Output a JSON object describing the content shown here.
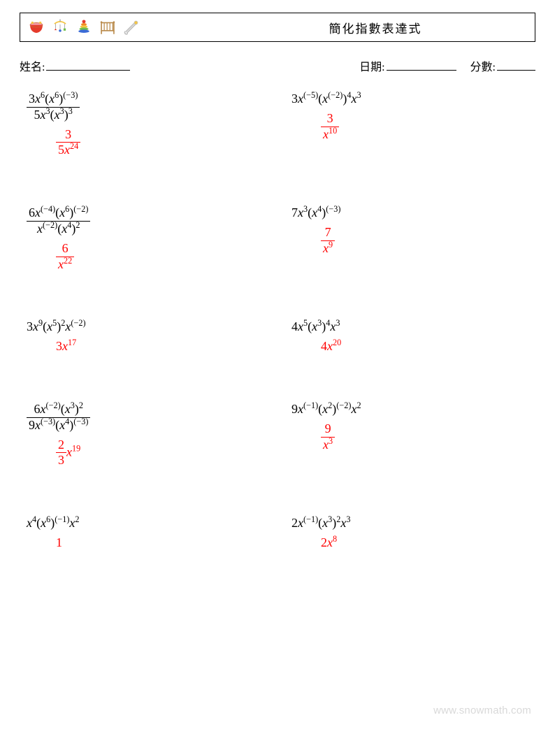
{
  "header": {
    "title": "簡化指數表達式",
    "icons": [
      "baby-toy-icon",
      "mobile-icon",
      "stacking-rings-icon",
      "crib-icon",
      "safety-pin-icon"
    ]
  },
  "info": {
    "name_label": "姓名:",
    "date_label": "日期:",
    "score_label": "分數:"
  },
  "colors": {
    "text": "#000000",
    "answer": "#ff0000",
    "watermark": "#d9d9d9",
    "icon_red": "#e53b2c",
    "icon_yellow": "#f5c542",
    "icon_blue": "#3b6bd6",
    "icon_green": "#6fbf4b",
    "icon_orange": "#f08a24",
    "icon_pink": "#f29ca6",
    "icon_brown": "#b98a4a",
    "icon_gray": "#bfbfbf"
  },
  "problems": [
    {
      "expr": {
        "type": "frac",
        "num_html": "3<span class='var'>x</span><sup>6</sup>(<span class='var'>x</span><sup>6</sup>)<sup>(−3)</sup>",
        "den_html": "5<span class='var'>x</span><sup>3</sup>(<span class='var'>x</span><sup>3</sup>)<sup>3</sup>"
      },
      "ans": {
        "type": "frac",
        "num_html": "3",
        "den_html": "5<span class='var'>x</span><sup>24</sup>"
      }
    },
    {
      "expr": {
        "type": "inline",
        "html": "3<span class='var'>x</span><sup>(−5)</sup>(<span class='var'>x</span><sup>(−2)</sup>)<sup>4</sup><span class='var'>x</span><sup>3</sup>"
      },
      "ans": {
        "type": "frac",
        "num_html": "3",
        "den_html": "<span class='var'>x</span><sup>10</sup>"
      }
    },
    {
      "expr": {
        "type": "frac",
        "num_html": "6<span class='var'>x</span><sup>(−4)</sup>(<span class='var'>x</span><sup>6</sup>)<sup>(−2)</sup>",
        "den_html": "<span class='var'>x</span><sup>(−2)</sup>(<span class='var'>x</span><sup>4</sup>)<sup>2</sup>"
      },
      "ans": {
        "type": "frac",
        "num_html": "6",
        "den_html": "<span class='var'>x</span><sup>22</sup>"
      }
    },
    {
      "expr": {
        "type": "inline",
        "html": "7<span class='var'>x</span><sup>3</sup>(<span class='var'>x</span><sup>4</sup>)<sup>(−3)</sup>"
      },
      "ans": {
        "type": "frac",
        "num_html": "7",
        "den_html": "<span class='var'>x</span><sup>9</sup>"
      }
    },
    {
      "expr": {
        "type": "inline",
        "html": "3<span class='var'>x</span><sup>9</sup>(<span class='var'>x</span><sup>5</sup>)<sup>2</sup><span class='var'>x</span><sup>(−2)</sup>"
      },
      "ans": {
        "type": "inline",
        "html": "3<span class='var'>x</span><sup>17</sup>"
      }
    },
    {
      "expr": {
        "type": "inline",
        "html": "4<span class='var'>x</span><sup>5</sup>(<span class='var'>x</span><sup>3</sup>)<sup>4</sup><span class='var'>x</span><sup>3</sup>"
      },
      "ans": {
        "type": "inline",
        "html": "4<span class='var'>x</span><sup>20</sup>"
      }
    },
    {
      "expr": {
        "type": "frac",
        "num_html": "6<span class='var'>x</span><sup>(−2)</sup>(<span class='var'>x</span><sup>3</sup>)<sup>2</sup>",
        "den_html": "9<span class='var'>x</span><sup>(−3)</sup>(<span class='var'>x</span><sup>4</sup>)<sup>(−3)</sup>"
      },
      "ans": {
        "type": "mixed",
        "frac_num": "2",
        "frac_den": "3",
        "tail_html": "<span class='var'>x</span><sup>19</sup>"
      }
    },
    {
      "expr": {
        "type": "inline",
        "html": "9<span class='var'>x</span><sup>(−1)</sup>(<span class='var'>x</span><sup>2</sup>)<sup>(−2)</sup><span class='var'>x</span><sup>2</sup>"
      },
      "ans": {
        "type": "frac",
        "num_html": "9",
        "den_html": "<span class='var'>x</span><sup>3</sup>"
      }
    },
    {
      "expr": {
        "type": "inline",
        "html": "<span class='var'>x</span><sup>4</sup>(<span class='var'>x</span><sup>6</sup>)<sup>(−1)</sup><span class='var'>x</span><sup>2</sup>"
      },
      "ans": {
        "type": "inline",
        "html": "1"
      }
    },
    {
      "expr": {
        "type": "inline",
        "html": "2<span class='var'>x</span><sup>(−1)</sup>(<span class='var'>x</span><sup>3</sup>)<sup>2</sup><span class='var'>x</span><sup>3</sup>"
      },
      "ans": {
        "type": "inline",
        "html": "2<span class='var'>x</span><sup>8</sup>"
      }
    }
  ],
  "watermark": "www.snowmath.com"
}
